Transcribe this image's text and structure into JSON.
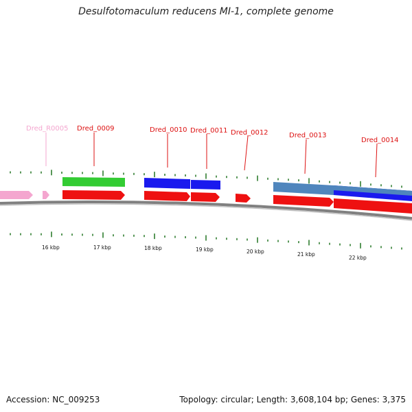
{
  "title": "Desulfotomaculum reducens MI-1, complete genome",
  "accession": "Accession: NC_009253",
  "summary": "Topology: circular; Length: 3,608,104 bp; Genes: 3,375",
  "colors": {
    "rRNA_arrow": "#f4a6cf",
    "cds_arrow": "#ee1111",
    "green_block": "#33cc33",
    "blue_block": "#1a1aee",
    "steel_block": "#4f86bd",
    "ticks": "#2f7d2f",
    "backbone": "#808080"
  },
  "gene_labels": [
    {
      "name": "Dred_R0005",
      "color": "#f4a6cf"
    },
    {
      "name": "Dred_0009",
      "color": "#dd1111"
    },
    {
      "name": "Dred_0010",
      "color": "#dd1111"
    },
    {
      "name": "Dred_0011",
      "color": "#dd1111"
    },
    {
      "name": "Dred_0012",
      "color": "#dd1111"
    },
    {
      "name": "Dred_0013",
      "color": "#dd1111"
    },
    {
      "name": "Dred_0014",
      "color": "#dd1111"
    }
  ],
  "kbp_labels": [
    "16 kbp",
    "17 kbp",
    "18 kbp",
    "19 kbp",
    "20 kbp",
    "21 kbp",
    "22 kbp"
  ]
}
